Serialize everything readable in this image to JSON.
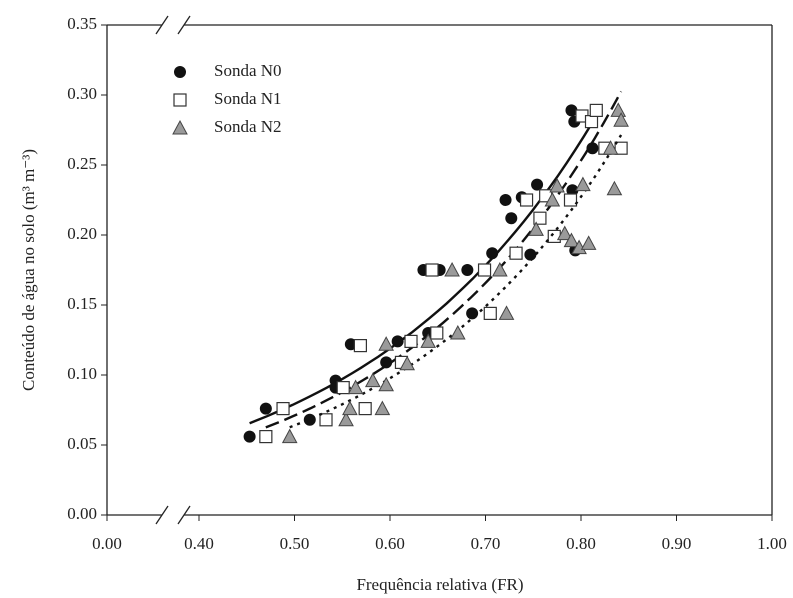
{
  "chart_data": {
    "type": "scatter",
    "x_label": "Frequência relativa (FR)",
    "y_label": "Conteúdo de água no solo (m³ m⁻³)",
    "xlim": [
      0,
      1
    ],
    "ylim": [
      0,
      0.35
    ],
    "x_axis_break": true,
    "legend": "upper-left",
    "trend_lines": true,
    "xticks": [
      {
        "value": 0,
        "label": "0.00"
      },
      {
        "value": 0.4,
        "label": "0.40"
      },
      {
        "value": 0.5,
        "label": "0.50"
      },
      {
        "value": 0.6,
        "label": "0.60"
      },
      {
        "value": 0.7,
        "label": "0.70"
      },
      {
        "value": 0.8,
        "label": "0.80"
      },
      {
        "value": 0.9,
        "label": "0.90"
      },
      {
        "value": 1,
        "label": "1.00"
      }
    ],
    "yticks": [
      {
        "value": 0,
        "label": "0.00"
      },
      0.05,
      {
        "value": 0.1,
        "label": "0.10"
      },
      0.15,
      {
        "value": 0.2,
        "label": "0.20"
      },
      0.25,
      {
        "value": 0.3,
        "label": "0.30"
      },
      0.35
    ],
    "series": [
      {
        "name": "Sonda N0",
        "marker": "circle",
        "color": "#111111",
        "line_style": "solid",
        "x": [
          0.453,
          0.47,
          0.516,
          0.543,
          0.543,
          0.559,
          0.596,
          0.608,
          0.64,
          0.635,
          0.652,
          0.681,
          0.686,
          0.707,
          0.721,
          0.727,
          0.738,
          0.747,
          0.754,
          0.791,
          0.79,
          0.793,
          0.812,
          0.794
        ],
        "values": [
          0.056,
          0.076,
          0.068,
          0.096,
          0.091,
          0.122,
          0.109,
          0.124,
          0.13,
          0.175,
          0.175,
          0.175,
          0.144,
          0.187,
          0.225,
          0.212,
          0.227,
          0.186,
          0.236,
          0.232,
          0.289,
          0.281,
          0.262,
          0.189
        ]
      },
      {
        "name": "Sonda N1",
        "marker": "square",
        "color": "#ffffff",
        "line_style": "dashed",
        "x": [
          0.47,
          0.488,
          0.533,
          0.551,
          0.569,
          0.574,
          0.612,
          0.622,
          0.644,
          0.649,
          0.705,
          0.699,
          0.732,
          0.743,
          0.757,
          0.763,
          0.772,
          0.789,
          0.801,
          0.811,
          0.816,
          0.842,
          0.825
        ],
        "values": [
          0.056,
          0.076,
          0.068,
          0.091,
          0.121,
          0.076,
          0.109,
          0.124,
          0.175,
          0.13,
          0.144,
          0.175,
          0.187,
          0.225,
          0.212,
          0.228,
          0.199,
          0.225,
          0.285,
          0.281,
          0.289,
          0.262,
          0.262
        ]
      },
      {
        "name": "Sonda N2",
        "marker": "triangle",
        "color": "#9a9a9a",
        "line_style": "dotted",
        "x": [
          0.495,
          0.554,
          0.558,
          0.564,
          0.582,
          0.592,
          0.596,
          0.596,
          0.618,
          0.64,
          0.665,
          0.671,
          0.722,
          0.715,
          0.753,
          0.77,
          0.775,
          0.783,
          0.79,
          0.798,
          0.808,
          0.802,
          0.835,
          0.831,
          0.839,
          0.842
        ],
        "values": [
          0.056,
          0.068,
          0.076,
          0.091,
          0.096,
          0.076,
          0.093,
          0.122,
          0.108,
          0.124,
          0.175,
          0.13,
          0.144,
          0.175,
          0.204,
          0.225,
          0.235,
          0.201,
          0.196,
          0.191,
          0.194,
          0.236,
          0.233,
          0.262,
          0.289,
          0.282
        ]
      }
    ]
  }
}
